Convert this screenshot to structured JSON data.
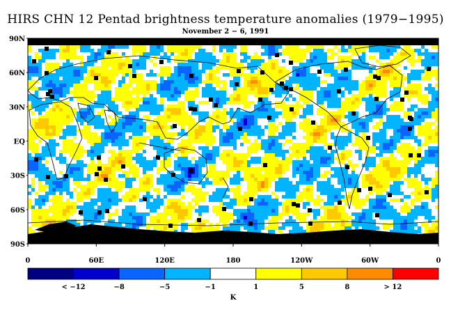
{
  "title": "HIRS CHN 12 Pentad brightness temperature anomalies (1979−1995)",
  "subtitle": "November 2 − 6, 1991",
  "map": {
    "lat_labels": [
      "90N",
      "60N",
      "30N",
      "EQ",
      "30S",
      "60S",
      "90S"
    ],
    "lon_labels": [
      "0",
      "60E",
      "120E",
      "180",
      "120W",
      "60W",
      "0"
    ]
  },
  "colorbar": {
    "colors": [
      "#000080",
      "#0000cd",
      "#0a64ff",
      "#00b4ff",
      "#ffffff",
      "#ffff00",
      "#ffc800",
      "#ff8c00",
      "#ff0000"
    ],
    "tick_labels": [
      "< −12",
      "−8",
      "−5",
      "−1",
      "1",
      "5",
      "8",
      "> 12"
    ],
    "unit": "K"
  }
}
